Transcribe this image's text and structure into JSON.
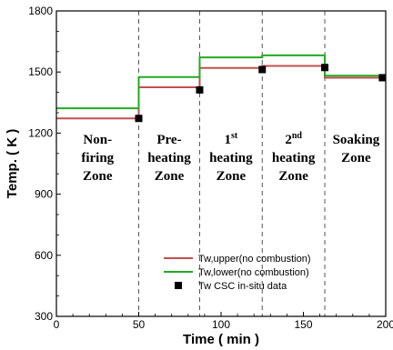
{
  "chart_data": {
    "type": "line",
    "xlabel": "Time ( min )",
    "ylabel": "Temp. ( K )",
    "xlim": [
      0,
      200
    ],
    "ylim": [
      300,
      1800
    ],
    "x_ticks": [
      "0",
      "50",
      "100",
      "150",
      "200"
    ],
    "y_ticks": [
      "300",
      "600",
      "900",
      "1200",
      "1500",
      "1800"
    ],
    "zone_boundaries": [
      50,
      87,
      125,
      163
    ],
    "zones": [
      {
        "lines": [
          "Non-",
          "firing",
          "Zone"
        ],
        "x_center": 25,
        "y_top": 1148
      },
      {
        "lines": [
          "Pre-",
          "heating",
          "Zone"
        ],
        "x_center": 68.5,
        "y_top": 1148
      },
      {
        "lines": [
          "1",
          "heating",
          "Zone"
        ],
        "sup": "st",
        "x_center": 106,
        "y_top": 1148
      },
      {
        "lines": [
          "2",
          "heating",
          "Zone"
        ],
        "sup": "nd",
        "x_center": 144,
        "y_top": 1148
      },
      {
        "lines": [
          "Soaking",
          "Zone"
        ],
        "x_center": 182,
        "y_top": 1148
      }
    ],
    "series": [
      {
        "name": "Tw,upper(no combustion)",
        "color": "#c0504d",
        "style": "step",
        "segments": [
          {
            "x0": 0,
            "x1": 50,
            "y": 1272
          },
          {
            "x0": 50,
            "x1": 87,
            "y": 1425
          },
          {
            "x0": 87,
            "x1": 125,
            "y": 1520
          },
          {
            "x0": 125,
            "x1": 163,
            "y": 1530
          },
          {
            "x0": 163,
            "x1": 200,
            "y": 1472
          }
        ]
      },
      {
        "name": "Tw,lower(no combustion)",
        "color": "#22aa22",
        "style": "step",
        "segments": [
          {
            "x0": 0,
            "x1": 50,
            "y": 1322
          },
          {
            "x0": 50,
            "x1": 87,
            "y": 1475
          },
          {
            "x0": 87,
            "x1": 125,
            "y": 1572
          },
          {
            "x0": 125,
            "x1": 163,
            "y": 1582
          },
          {
            "x0": 163,
            "x1": 200,
            "y": 1482
          }
        ]
      },
      {
        "name": "Tw CSC in-situ data",
        "color": "#000000",
        "style": "markers",
        "points": [
          {
            "x": 50,
            "y": 1272
          },
          {
            "x": 87,
            "y": 1412
          },
          {
            "x": 125,
            "y": 1512
          },
          {
            "x": 163,
            "y": 1522
          },
          {
            "x": 198,
            "y": 1472
          }
        ]
      }
    ],
    "legend_position": "bottom-right"
  }
}
